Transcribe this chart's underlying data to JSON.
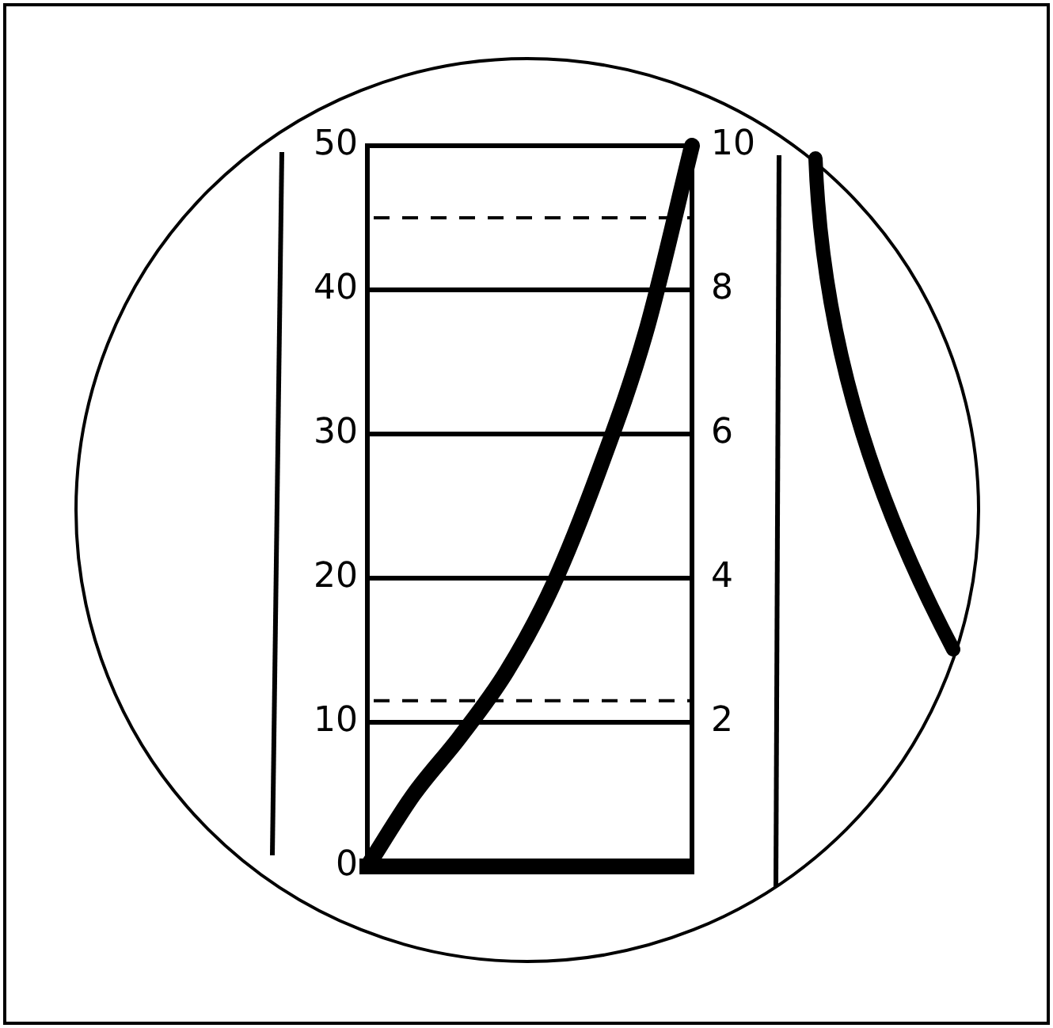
{
  "chart_data": {
    "type": "line",
    "categories": [
      null,
      null,
      null,
      null,
      null,
      null,
      null,
      null
    ],
    "series": [
      {
        "color": "#000000",
        "values": [
          0,
          5,
          9,
          13.5,
          19.5,
          27.5,
          37,
          50
        ]
      }
    ],
    "ylim": [
      0,
      50
    ],
    "yticks": [
      0,
      10,
      20,
      30,
      40,
      50
    ],
    "y2lim": [
      0,
      10
    ],
    "y2ticks": [
      2,
      4,
      6,
      8,
      10
    ],
    "grid": "y",
    "marker": "none",
    "line_style": "solid",
    "ref_lines": [
      {
        "axis": "y",
        "value": 45,
        "color": "#000000",
        "line_style": "dashed"
      },
      {
        "axis": "y",
        "value": 11.5,
        "color": "#000000",
        "line_style": "dashed"
      }
    ]
  }
}
